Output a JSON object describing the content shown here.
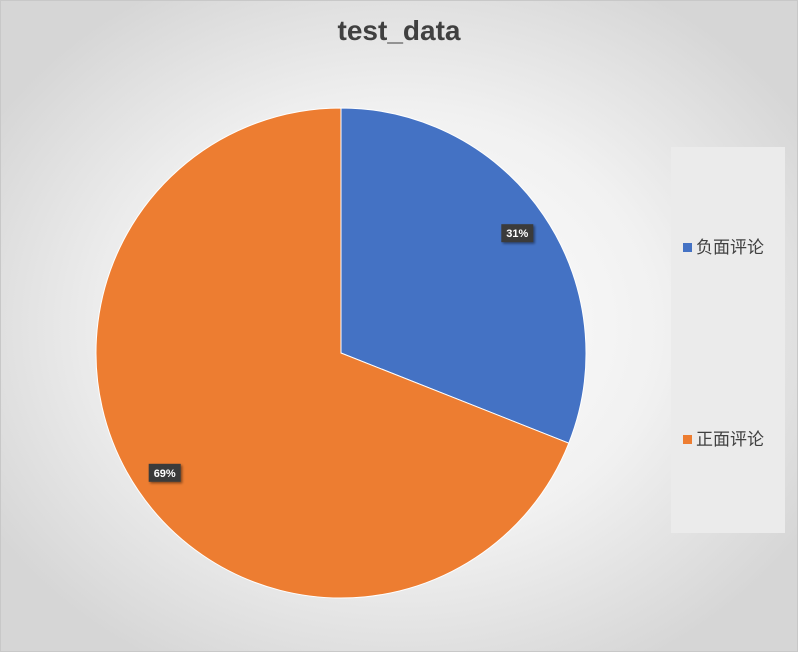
{
  "chart_data": {
    "type": "pie",
    "title": "test_data",
    "categories": [
      "负面评论",
      "正面评论"
    ],
    "values": [
      31,
      69
    ],
    "data_labels": [
      "31%",
      "69%"
    ],
    "colors": [
      "#4472C4",
      "#ED7D31"
    ],
    "legend_position": "right",
    "start_angle": "top, clockwise"
  }
}
